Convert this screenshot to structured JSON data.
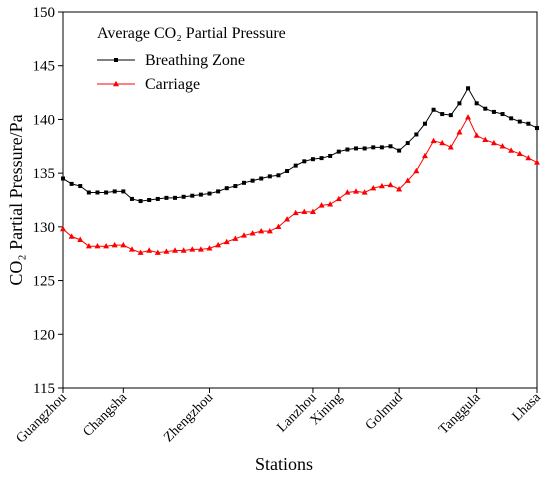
{
  "chart_data": {
    "type": "line",
    "legend_title": "Average CO₂ Partial Pressure",
    "x_label": "Stations",
    "y_label": "CO₂ Partial Pressure/Pa",
    "categories": [
      "Guangzhou",
      null,
      null,
      null,
      null,
      null,
      null,
      "Changsha",
      null,
      null,
      null,
      null,
      null,
      null,
      null,
      null,
      null,
      "Zhengzhou",
      null,
      null,
      null,
      null,
      null,
      null,
      null,
      null,
      null,
      null,
      null,
      "Lanzhou",
      null,
      null,
      "Xining",
      null,
      null,
      null,
      null,
      null,
      null,
      "Golmud",
      null,
      null,
      null,
      null,
      null,
      null,
      null,
      null,
      "Tanggula",
      null,
      null,
      null,
      null,
      null,
      null,
      "Lhasa"
    ],
    "series": [
      {
        "name": "Breathing Zone",
        "color": "#000000",
        "marker": "square",
        "values": [
          134.5,
          134.0,
          133.8,
          133.2,
          133.2,
          133.2,
          133.3,
          133.3,
          132.6,
          132.4,
          132.5,
          132.6,
          132.7,
          132.7,
          132.8,
          132.9,
          133.0,
          133.1,
          133.3,
          133.6,
          133.8,
          134.1,
          134.3,
          134.5,
          134.7,
          134.8,
          135.2,
          135.7,
          136.1,
          136.3,
          136.4,
          136.6,
          137.0,
          137.2,
          137.3,
          137.3,
          137.4,
          137.4,
          137.5,
          137.1,
          137.8,
          138.6,
          139.6,
          140.9,
          140.5,
          140.4,
          141.5,
          142.9,
          141.5,
          141.0,
          140.7,
          140.5,
          140.1,
          139.8,
          139.6,
          139.2
        ]
      },
      {
        "name": "Carriage",
        "color": "#ff0000",
        "marker": "triangle",
        "values": [
          129.8,
          129.1,
          128.8,
          128.2,
          128.2,
          128.2,
          128.3,
          128.3,
          127.9,
          127.6,
          127.8,
          127.6,
          127.7,
          127.8,
          127.8,
          127.9,
          127.9,
          128.0,
          128.3,
          128.6,
          128.9,
          129.2,
          129.4,
          129.6,
          129.6,
          130.0,
          130.7,
          131.3,
          131.4,
          131.4,
          132.0,
          132.1,
          132.6,
          133.2,
          133.3,
          133.2,
          133.6,
          133.8,
          133.9,
          133.5,
          134.3,
          135.2,
          136.6,
          138.0,
          137.8,
          137.4,
          138.8,
          140.2,
          138.5,
          138.1,
          137.8,
          137.5,
          137.1,
          136.8,
          136.4,
          136.0
        ]
      }
    ],
    "ylim": [
      115,
      150
    ],
    "yticks": [
      115,
      120,
      125,
      130,
      135,
      140,
      145,
      150
    ],
    "grid": false,
    "legend_position": "upper left"
  }
}
